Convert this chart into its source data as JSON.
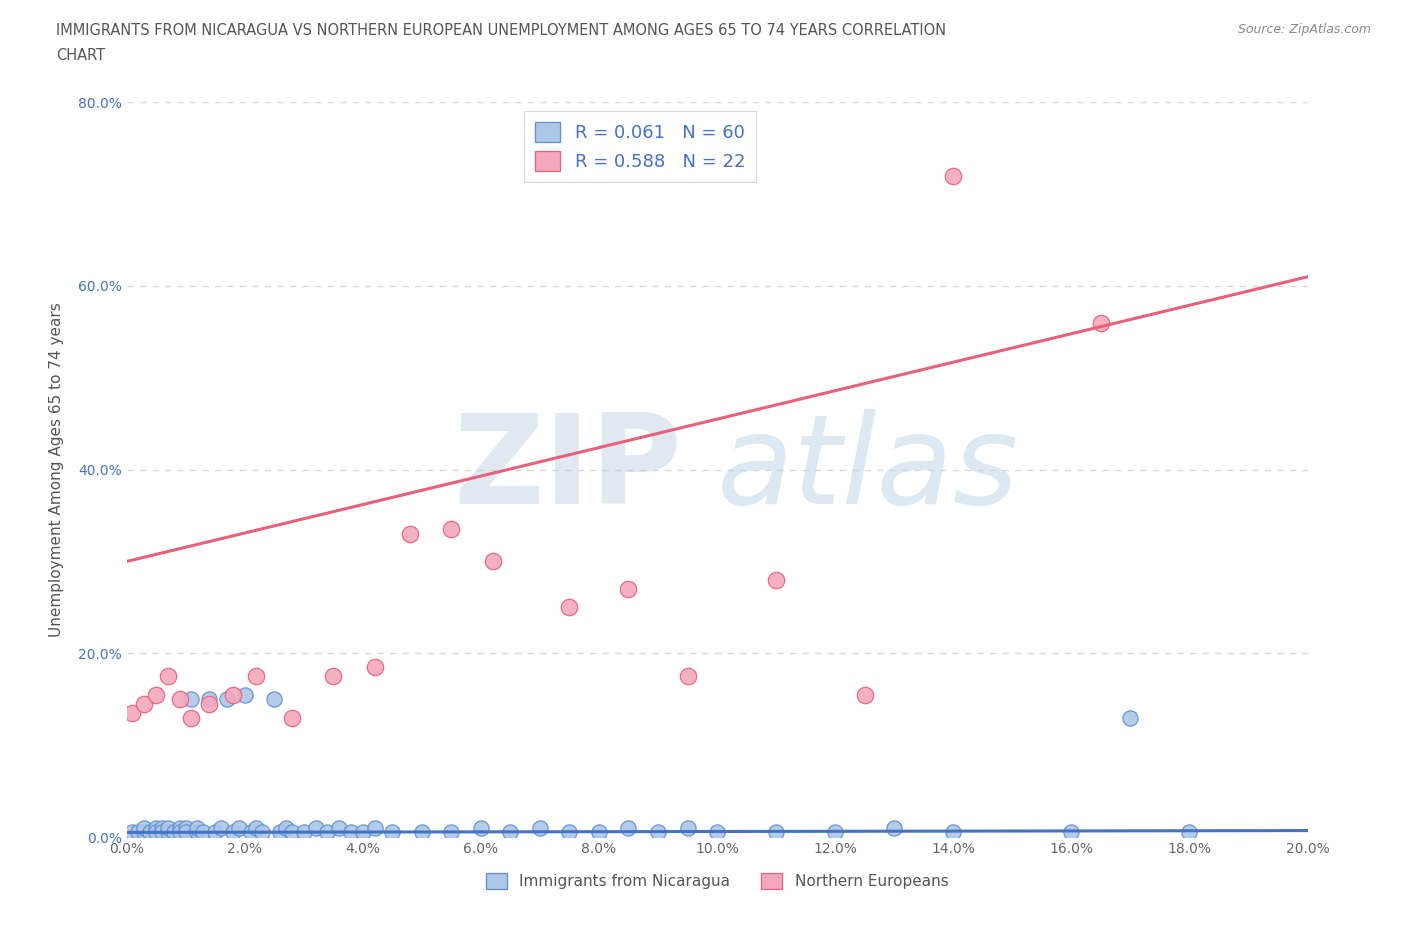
{
  "title_line1": "IMMIGRANTS FROM NICARAGUA VS NORTHERN EUROPEAN UNEMPLOYMENT AMONG AGES 65 TO 74 YEARS CORRELATION",
  "title_line2": "CHART",
  "source": "Source: ZipAtlas.com",
  "xlabel": "Immigrants from Nicaragua",
  "ylabel": "Unemployment Among Ages 65 to 74 years",
  "watermark_zip": "ZIP",
  "watermark_atlas": "atlas",
  "xlim": [
    0.0,
    0.2
  ],
  "ylim": [
    0.0,
    0.8
  ],
  "xticks": [
    0.0,
    0.02,
    0.04,
    0.06,
    0.08,
    0.1,
    0.12,
    0.14,
    0.16,
    0.18,
    0.2
  ],
  "yticks": [
    0.0,
    0.2,
    0.4,
    0.6,
    0.8
  ],
  "blue_R": 0.061,
  "blue_N": 60,
  "pink_R": 0.588,
  "pink_N": 22,
  "blue_color": "#aec6e8",
  "pink_color": "#f4a8bc",
  "blue_edge_color": "#5b8fcf",
  "pink_edge_color": "#e8607a",
  "blue_line_color": "#4472c4",
  "pink_line_color": "#e8607a",
  "grid_color": "#cccccc",
  "title_color": "#555555",
  "legend_text_color": "#4472c4",
  "blue_line_intercept": 0.005,
  "blue_line_slope": 0.01,
  "pink_line_intercept": 0.3,
  "pink_line_slope": 1.55,
  "blue_scatter_x": [
    0.001,
    0.002,
    0.003,
    0.003,
    0.004,
    0.005,
    0.005,
    0.006,
    0.006,
    0.007,
    0.007,
    0.008,
    0.009,
    0.009,
    0.01,
    0.01,
    0.011,
    0.012,
    0.012,
    0.013,
    0.014,
    0.015,
    0.016,
    0.017,
    0.018,
    0.019,
    0.02,
    0.021,
    0.022,
    0.023,
    0.025,
    0.026,
    0.027,
    0.028,
    0.03,
    0.032,
    0.034,
    0.036,
    0.038,
    0.04,
    0.042,
    0.045,
    0.05,
    0.055,
    0.06,
    0.065,
    0.07,
    0.075,
    0.08,
    0.085,
    0.09,
    0.095,
    0.1,
    0.11,
    0.12,
    0.13,
    0.14,
    0.16,
    0.17,
    0.18
  ],
  "blue_scatter_y": [
    0.005,
    0.005,
    0.005,
    0.01,
    0.005,
    0.01,
    0.005,
    0.01,
    0.005,
    0.005,
    0.01,
    0.005,
    0.01,
    0.005,
    0.01,
    0.005,
    0.15,
    0.005,
    0.01,
    0.005,
    0.15,
    0.005,
    0.01,
    0.15,
    0.005,
    0.01,
    0.155,
    0.005,
    0.01,
    0.005,
    0.15,
    0.005,
    0.01,
    0.005,
    0.005,
    0.01,
    0.005,
    0.01,
    0.005,
    0.005,
    0.01,
    0.005,
    0.005,
    0.005,
    0.01,
    0.005,
    0.01,
    0.005,
    0.005,
    0.01,
    0.005,
    0.01,
    0.005,
    0.005,
    0.005,
    0.01,
    0.005,
    0.005,
    0.13,
    0.005
  ],
  "pink_scatter_x": [
    0.001,
    0.003,
    0.005,
    0.007,
    0.009,
    0.011,
    0.014,
    0.018,
    0.022,
    0.028,
    0.035,
    0.042,
    0.048,
    0.055,
    0.062,
    0.075,
    0.085,
    0.095,
    0.11,
    0.125,
    0.14,
    0.165
  ],
  "pink_scatter_y": [
    0.135,
    0.145,
    0.155,
    0.175,
    0.15,
    0.13,
    0.145,
    0.155,
    0.175,
    0.13,
    0.175,
    0.185,
    0.33,
    0.335,
    0.3,
    0.25,
    0.27,
    0.175,
    0.28,
    0.155,
    0.72,
    0.56
  ]
}
